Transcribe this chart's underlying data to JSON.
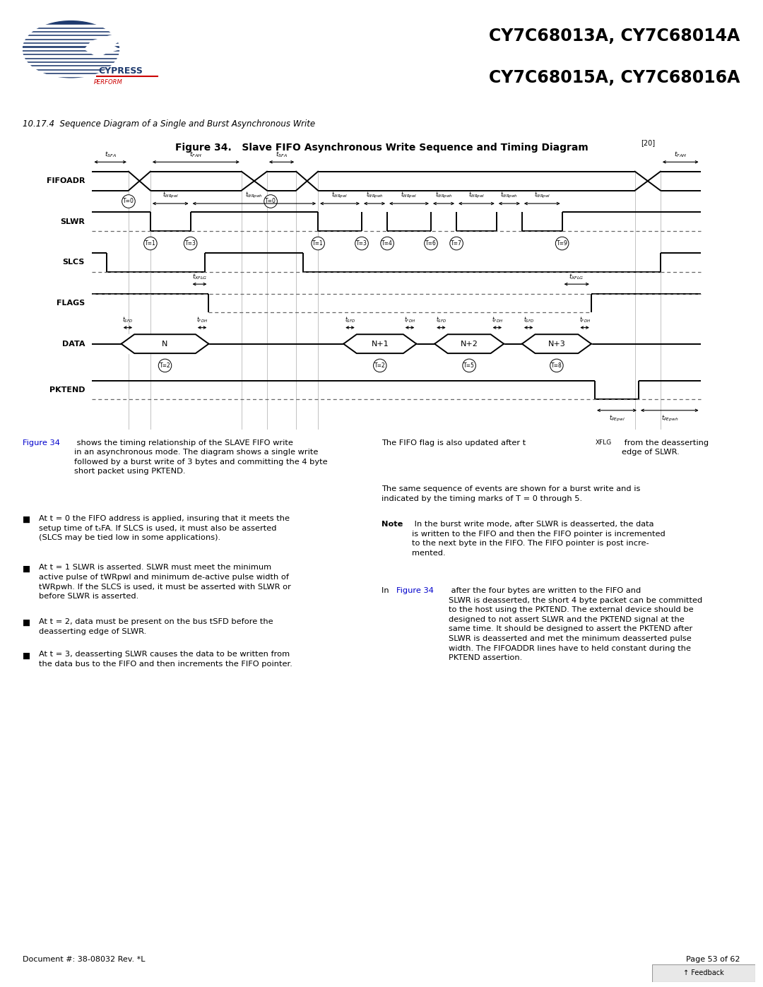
{
  "title_line1": "CY7C68013A, CY7C68014A",
  "title_line2": "CY7C68015A, CY7C68016A",
  "subtitle": "10.17.4  Sequence Diagram of a Single and Burst Asynchronous Write",
  "fig_title": "Figure 34.   Slave FIFO Asynchronous Write Sequence and Timing Diagram",
  "fig_title_ref": "[20]",
  "signals": [
    "FIFOADR",
    "SLWR",
    "SLCS",
    "FLAGS",
    "DATA",
    "PKTEND"
  ],
  "bg_color": "#ffffff",
  "doc_number": "Document #: 38-08032 Rev. *L",
  "page": "Page 53 of 62",
  "header_blue": "#1e3a6e",
  "cypress_blue": "#1e3a6e",
  "cypress_red": "#cc0000",
  "body_left": "Figure 34 shows the timing relationship of the SLAVE FIFO write\nin an asynchronous mode. The diagram shows a single write\nfollowed by a burst write of 3 bytes and committing the 4 byte\nshort packet using PKTEND.",
  "bullet1": "At t = 0 the FIFO address is applied, insuring that it meets the\nsetup time of t",
  "bullet1b": "SFA",
  "bullet1c": ". If SLCS is used, it must also be asserted\n(SLCS may be tied low in some applications).",
  "bullet2": "At t = 1 SLWR is asserted. SLWR must meet the minimum\nactive pulse of t",
  "bullet3": "At t = 2, data must be present on the bus t",
  "bullet4": "At t = 3, deasserting SLWR causes the data to be written from\nthe data bus to the FIFO and then increments the FIFO pointer.",
  "right_col1": "The FIFO flag is also updated after t",
  "right_col2": "The same sequence of events are shown for a burst write and is\nindicated by the timing marks of T = 0 through 5.",
  "right_col3": "In the burst write mode, after SLWR is deasserted, the data\nis written to the FIFO and then the FIFO pointer is incremented\nto the next byte in the FIFO. The FIFO pointer is post incre-\nmented.",
  "right_col4": "In Figure 34 after the four bytes are written to the FIFO and\nSLWR is deasserted, the short 4 byte packet can be committed\nto the host using the PKTEND. The external device should be\ndesigned to not assert SLWR and the PKTEND signal at the\nsame time. It should be designed to assert the PKTEND after\nSLWR is deasserted and met the minimum deasserted pulse\nwidth. The FIFOADDR lines have to held constant during the\nPKTEND assertion."
}
